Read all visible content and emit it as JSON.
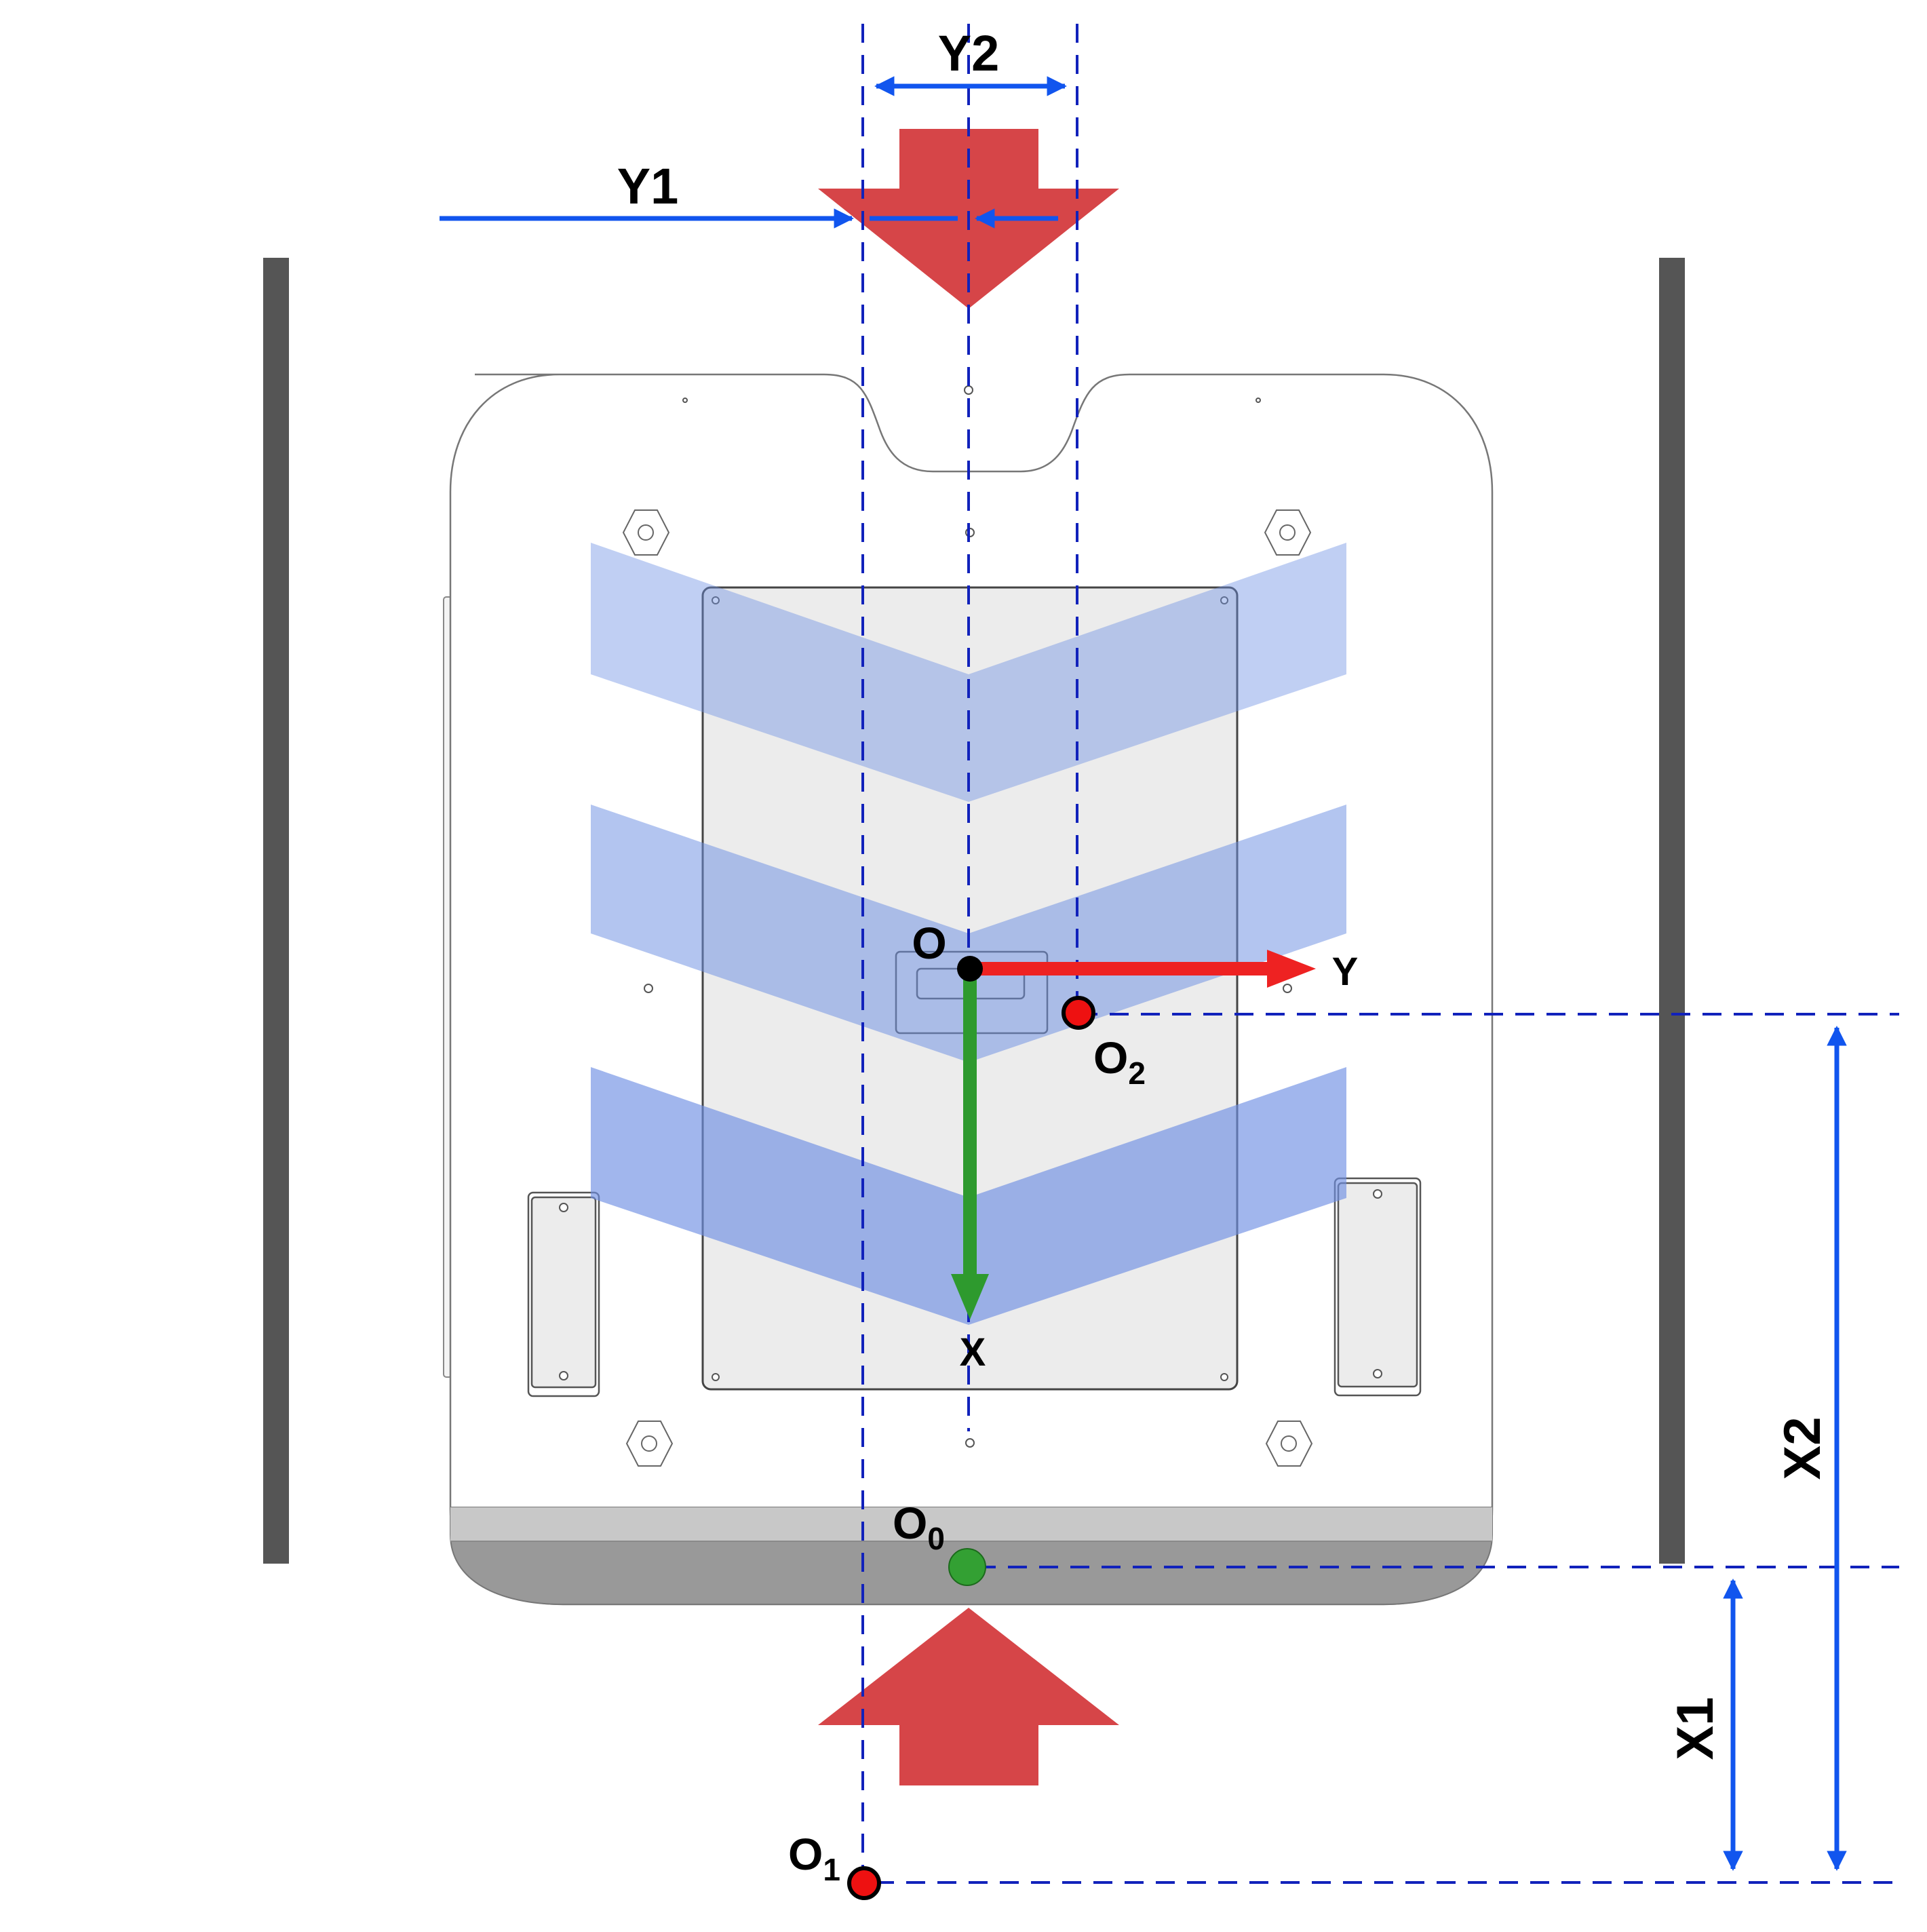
{
  "labels": {
    "y1": "Y1",
    "y2": "Y2",
    "x1": "X1",
    "x2": "X2",
    "origin": "O",
    "axis_x": "X",
    "axis_y": "Y",
    "o0_main": "O",
    "o0_sub": "0",
    "o1_main": "O",
    "o1_sub": "1",
    "o2_main": "O",
    "o2_sub": "2"
  },
  "colors": {
    "dimension_blue": "#1155ee",
    "dashed_blue": "#1122bb",
    "force_arrow_red": "#d64548",
    "axis_y_red": "#ee2222",
    "axis_x_green": "#2e9a2e",
    "point_red": "#ee1111",
    "point_green": "#33a033",
    "rail_gray": "#555555",
    "chevron_blue": "#6e8fe3"
  }
}
